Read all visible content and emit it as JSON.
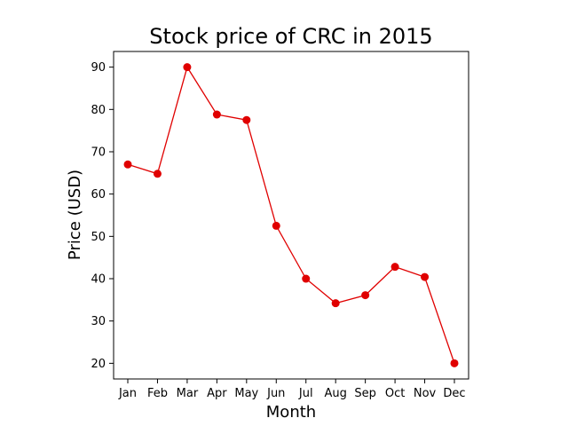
{
  "chart_data": {
    "type": "line",
    "title": "Stock price of CRC in 2015",
    "xlabel": "Month",
    "ylabel": "Price (USD)",
    "categories": [
      "Jan",
      "Feb",
      "Mar",
      "Apr",
      "May",
      "Jun",
      "Jul",
      "Aug",
      "Sep",
      "Oct",
      "Nov",
      "Dec"
    ],
    "series": [
      {
        "values": [
          67,
          64.8,
          90,
          78.8,
          77.5,
          52.5,
          40,
          34.2,
          36.1,
          42.8,
          40.4,
          20
        ],
        "color": "#e00000",
        "marker": "circle"
      }
    ],
    "yticks": [
      20,
      30,
      40,
      50,
      60,
      70,
      80,
      90
    ],
    "ylim": [
      16.3,
      93.7
    ],
    "grid": false,
    "legend": "none"
  }
}
